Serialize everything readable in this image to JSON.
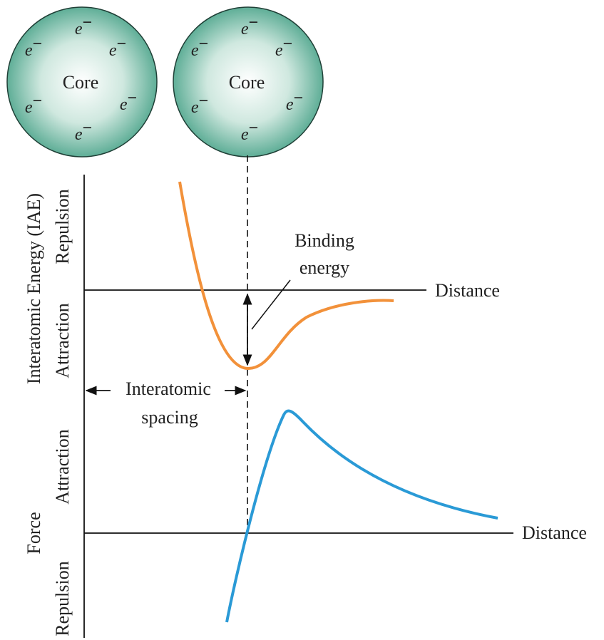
{
  "atoms": [
    {
      "label": "Core",
      "electrons": [
        {
          "symbol": "e",
          "charge": "−"
        },
        {
          "symbol": "e",
          "charge": "−"
        },
        {
          "symbol": "e",
          "charge": "−"
        },
        {
          "symbol": "e",
          "charge": "−"
        },
        {
          "symbol": "e",
          "charge": "−"
        },
        {
          "symbol": "e",
          "charge": "−"
        }
      ]
    },
    {
      "label": "Core",
      "electrons": [
        {
          "symbol": "e",
          "charge": "−"
        },
        {
          "symbol": "e",
          "charge": "−"
        },
        {
          "symbol": "e",
          "charge": "−"
        },
        {
          "symbol": "e",
          "charge": "−"
        },
        {
          "symbol": "e",
          "charge": "−"
        },
        {
          "symbol": "e",
          "charge": "−"
        }
      ]
    }
  ],
  "energy_plot": {
    "axis_title": "Interatomic Energy (IAE)",
    "upper_region": "Repulsion",
    "lower_region": "Attraction",
    "x_axis_label": "Distance",
    "annotation": [
      "Binding",
      "energy"
    ],
    "spacing_label": [
      "Interatomic",
      "spacing"
    ]
  },
  "force_plot": {
    "axis_title": "Force",
    "upper_region": "Attraction",
    "lower_region": "Repulsion",
    "x_axis_label": "Distance"
  }
}
